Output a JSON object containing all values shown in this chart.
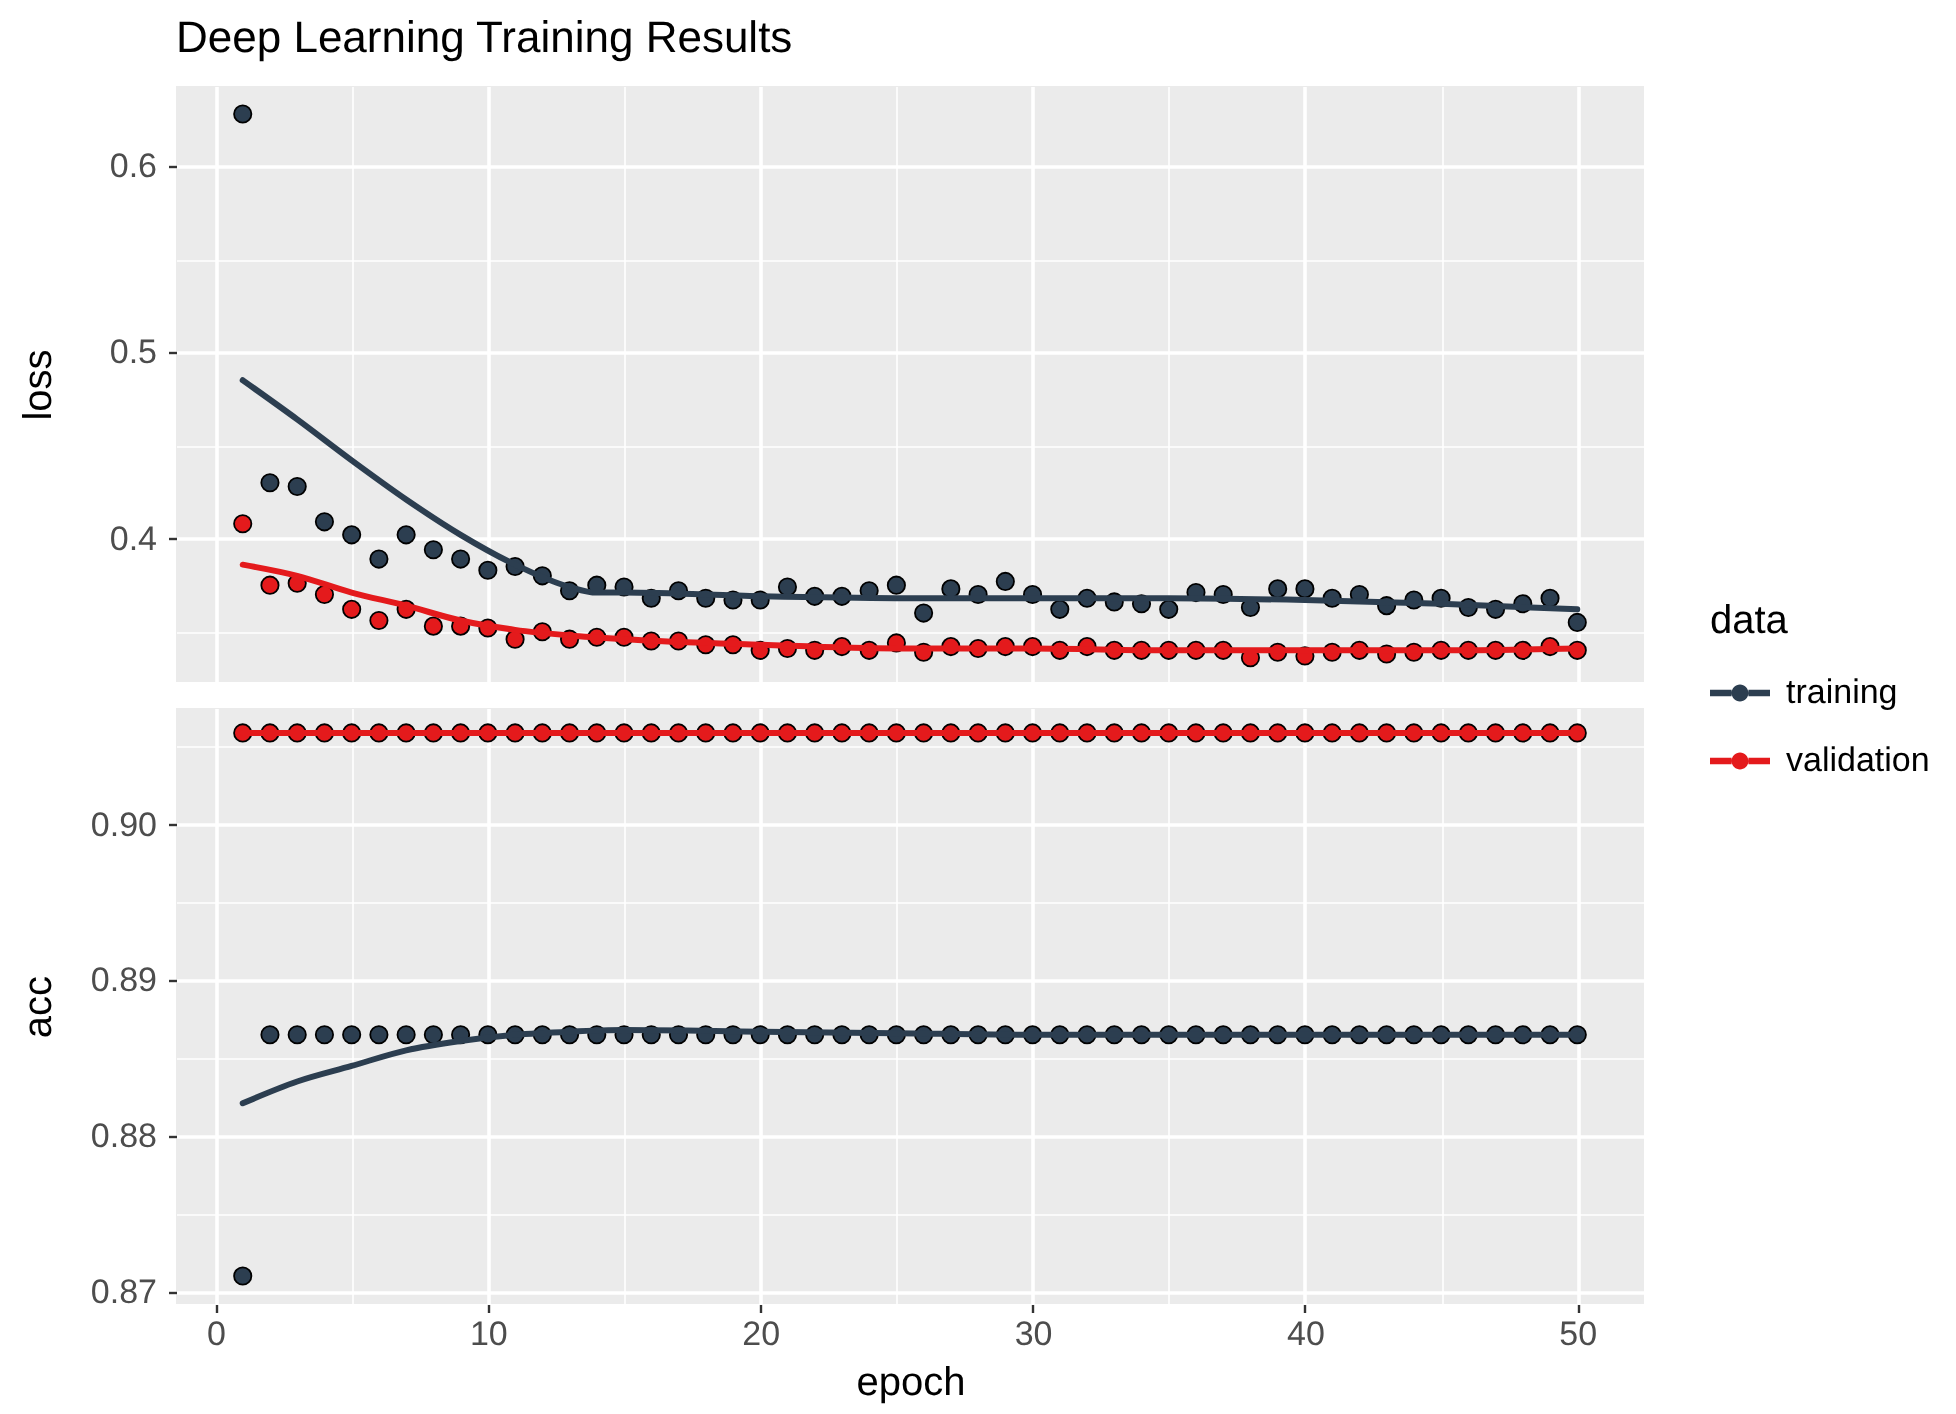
{
  "chart_data": [
    {
      "type": "scatter",
      "title": "Deep Learning Training Results",
      "ylabel": "loss",
      "legend": "right",
      "legend_title": "data",
      "grid": true,
      "marker": "circle",
      "tick_labels": "y",
      "xlim": [
        -1.45,
        52.45
      ],
      "xticks": [
        0,
        {
          "value": 5,
          "label": null
        },
        10,
        {
          "value": 15,
          "label": null
        },
        20,
        {
          "value": 25,
          "label": null
        },
        30,
        {
          "value": 35,
          "label": null
        },
        40,
        {
          "value": 45,
          "label": null
        },
        50
      ],
      "ylim": [
        0.323,
        0.643
      ],
      "yticks": [
        {
          "value": 0.35,
          "label": null
        },
        0.4,
        {
          "value": 0.45,
          "label": null
        },
        0.5,
        {
          "value": 0.55,
          "label": null
        },
        0.6
      ],
      "x": [
        1,
        2,
        3,
        4,
        5,
        6,
        7,
        8,
        9,
        10,
        11,
        12,
        13,
        14,
        15,
        16,
        17,
        18,
        19,
        20,
        21,
        22,
        23,
        24,
        25,
        26,
        27,
        28,
        29,
        30,
        31,
        32,
        33,
        34,
        35,
        36,
        37,
        38,
        39,
        40,
        41,
        42,
        43,
        44,
        45,
        46,
        47,
        48,
        49,
        50
      ],
      "series": [
        {
          "name": "training",
          "color": "#2c3e50",
          "values": [
            0.628,
            0.43,
            0.428,
            0.409,
            0.402,
            0.389,
            0.402,
            0.394,
            0.389,
            0.383,
            0.385,
            0.38,
            0.372,
            0.375,
            0.374,
            0.368,
            0.372,
            0.368,
            0.367,
            0.367,
            0.374,
            0.369,
            0.369,
            0.372,
            0.375,
            0.36,
            0.373,
            0.37,
            0.377,
            0.37,
            0.362,
            0.368,
            0.366,
            0.365,
            0.362,
            0.371,
            0.37,
            0.363,
            0.373,
            0.373,
            0.368,
            0.37,
            0.364,
            0.367,
            0.368,
            0.363,
            0.362,
            0.365,
            0.368,
            0.355
          ]
        },
        {
          "name": "validation",
          "color": "#e41a1c",
          "values": [
            0.408,
            0.375,
            0.376,
            0.37,
            0.362,
            0.356,
            0.362,
            0.353,
            0.353,
            0.352,
            0.346,
            0.35,
            0.346,
            0.347,
            0.347,
            0.345,
            0.345,
            0.343,
            0.343,
            0.34,
            0.341,
            0.34,
            0.342,
            0.34,
            0.344,
            0.339,
            0.342,
            0.341,
            0.342,
            0.342,
            0.34,
            0.342,
            0.34,
            0.34,
            0.34,
            0.34,
            0.34,
            0.336,
            0.339,
            0.337,
            0.339,
            0.34,
            0.338,
            0.339,
            0.34,
            0.34,
            0.34,
            0.34,
            0.342,
            0.34
          ]
        },
        {
          "type": "line",
          "color": "#2c3e50",
          "marker": "none",
          "x": [
            1,
            3,
            5,
            7,
            9,
            11,
            13,
            14,
            15,
            20,
            25,
            30,
            35,
            40,
            45,
            50
          ],
          "values": [
            0.485,
            0.464,
            0.442,
            0.421,
            0.402,
            0.386,
            0.374,
            0.371,
            0.371,
            0.369,
            0.368,
            0.368,
            0.368,
            0.367,
            0.365,
            0.362
          ]
        },
        {
          "type": "line",
          "color": "#e41a1c",
          "marker": "none",
          "x": [
            1,
            3,
            5,
            7,
            9,
            11,
            13,
            15,
            20,
            25,
            30,
            35,
            40,
            45,
            50
          ],
          "values": [
            0.386,
            0.38,
            0.371,
            0.364,
            0.356,
            0.351,
            0.348,
            0.346,
            0.343,
            0.341,
            0.341,
            0.34,
            0.34,
            0.34,
            0.341
          ]
        }
      ]
    },
    {
      "type": "scatter",
      "xlabel": "epoch",
      "ylabel": "acc",
      "grid": true,
      "marker": "circle",
      "xlim": [
        -1.45,
        52.45
      ],
      "xticks": [
        0,
        {
          "value": 5,
          "label": null
        },
        10,
        {
          "value": 15,
          "label": null
        },
        20,
        {
          "value": 25,
          "label": null
        },
        30,
        {
          "value": 35,
          "label": null
        },
        40,
        {
          "value": 45,
          "label": null
        },
        50
      ],
      "ylim": [
        0.8692,
        0.9075
      ],
      "yticks": [
        0.87,
        {
          "value": 0.875,
          "label": null
        },
        0.88,
        {
          "value": 0.885,
          "label": null
        },
        0.89,
        {
          "value": 0.895,
          "label": null
        },
        {
          "value": 0.9,
          "label": "0.90"
        },
        {
          "value": 0.905,
          "label": null
        }
      ],
      "x": [
        1,
        2,
        3,
        4,
        5,
        6,
        7,
        8,
        9,
        10,
        11,
        12,
        13,
        14,
        15,
        16,
        17,
        18,
        19,
        20,
        21,
        22,
        23,
        24,
        25,
        26,
        27,
        28,
        29,
        30,
        31,
        32,
        33,
        34,
        35,
        36,
        37,
        38,
        39,
        40,
        41,
        42,
        43,
        44,
        45,
        46,
        47,
        48,
        49,
        50
      ],
      "series": [
        {
          "name": "training",
          "color": "#2c3e50",
          "values": [
            0.871,
            0.8865,
            0.8865,
            0.8865,
            0.8865,
            0.8865,
            0.8865,
            0.8865,
            0.8865,
            0.8865,
            0.8865,
            0.8865,
            0.8865,
            0.8865,
            0.8865,
            0.8865,
            0.8865,
            0.8865,
            0.8865,
            0.8865,
            0.8865,
            0.8865,
            0.8865,
            0.8865,
            0.8865,
            0.8865,
            0.8865,
            0.8865,
            0.8865,
            0.8865,
            0.8865,
            0.8865,
            0.8865,
            0.8865,
            0.8865,
            0.8865,
            0.8865,
            0.8865,
            0.8865,
            0.8865,
            0.8865,
            0.8865,
            0.8865,
            0.8865,
            0.8865,
            0.8865,
            0.8865,
            0.8865,
            0.8865,
            0.8865
          ]
        },
        {
          "name": "validation",
          "color": "#e41a1c",
          "values": [
            0.9059,
            0.9059,
            0.9059,
            0.9059,
            0.9059,
            0.9059,
            0.9059,
            0.9059,
            0.9059,
            0.9059,
            0.9059,
            0.9059,
            0.9059,
            0.9059,
            0.9059,
            0.9059,
            0.9059,
            0.9059,
            0.9059,
            0.9059,
            0.9059,
            0.9059,
            0.9059,
            0.9059,
            0.9059,
            0.9059,
            0.9059,
            0.9059,
            0.9059,
            0.9059,
            0.9059,
            0.9059,
            0.9059,
            0.9059,
            0.9059,
            0.9059,
            0.9059,
            0.9059,
            0.9059,
            0.9059,
            0.9059,
            0.9059,
            0.9059,
            0.9059,
            0.9059,
            0.9059,
            0.9059,
            0.9059,
            0.9059,
            0.9059
          ]
        },
        {
          "type": "line",
          "color": "#2c3e50",
          "marker": "none",
          "x": [
            1,
            3,
            5,
            7,
            9,
            11,
            13,
            15,
            20,
            25,
            30,
            40,
            50
          ],
          "values": [
            0.8821,
            0.8835,
            0.8845,
            0.8855,
            0.8861,
            0.8865,
            0.8867,
            0.8868,
            0.8867,
            0.8866,
            0.8865,
            0.8865,
            0.8865
          ]
        },
        {
          "type": "line",
          "color": "#e41a1c",
          "marker": "none",
          "x": [
            1,
            25,
            50
          ],
          "values": [
            0.9059,
            0.9059,
            0.9059
          ]
        }
      ]
    }
  ]
}
